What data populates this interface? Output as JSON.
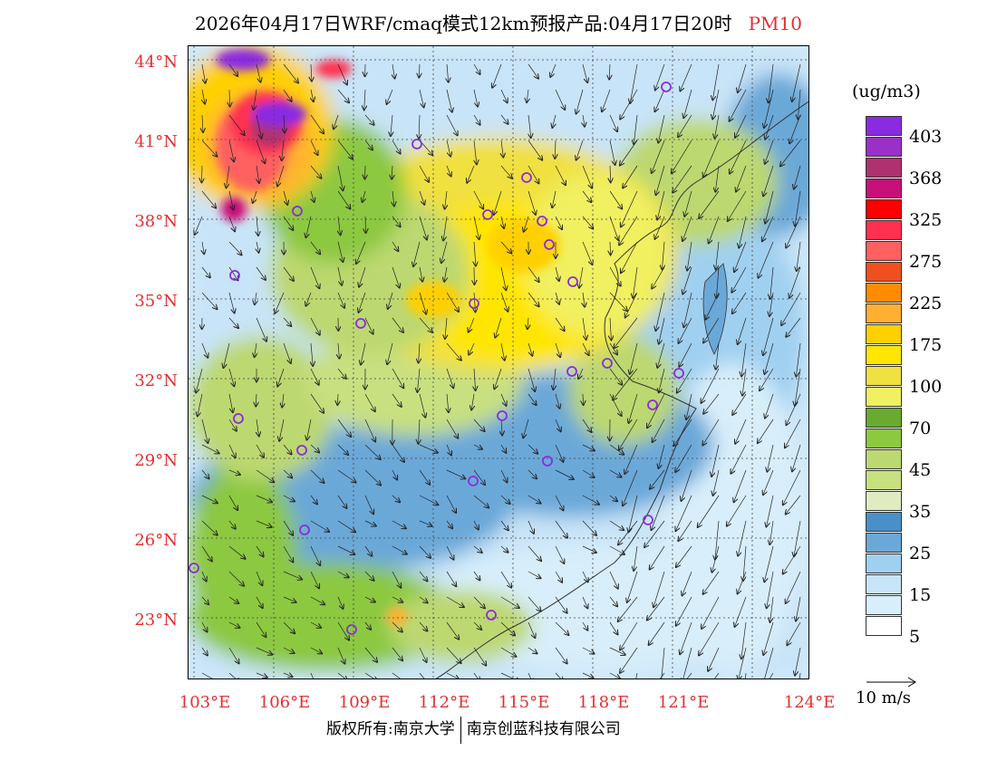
{
  "title": {
    "main": "2026年04月17日WRF/cmaq模式12km预报产品:04月17日20时",
    "variable": "PM10"
  },
  "lat_labels": [
    "44°N",
    "41°N",
    "38°N",
    "35°N",
    "32°N",
    "29°N",
    "26°N",
    "23°N"
  ],
  "lon_labels": [
    "103°E",
    "106°E",
    "109°E",
    "112°E",
    "115°E",
    "118°E",
    "121°E",
    "124°E"
  ],
  "colorbar": {
    "unit": "(ug/m3)",
    "labels": [
      "403",
      "368",
      "325",
      "275",
      "225",
      "175",
      "100",
      "70",
      "45",
      "35",
      "25",
      "15",
      "5"
    ],
    "colors": [
      "#8a2be2",
      "#9b30c8",
      "#b03070",
      "#c8107a",
      "#ff0000",
      "#ff3050",
      "#ff6060",
      "#f05020",
      "#ff8c00",
      "#ffb030",
      "#ffd000",
      "#ffe600",
      "#f0e040",
      "#f0f060",
      "#6aaa30",
      "#8cc840",
      "#bcd870",
      "#c8e080",
      "#e0ecc0",
      "#4a90c8",
      "#6aa8d8",
      "#a0d0f0",
      "#c8e4f8",
      "#d8eefa",
      "#ffffff"
    ]
  },
  "wind_reference": "10 m/s",
  "footer": {
    "left": "版权所有:南京大学",
    "right": "南京创蓝科技有限公司"
  }
}
